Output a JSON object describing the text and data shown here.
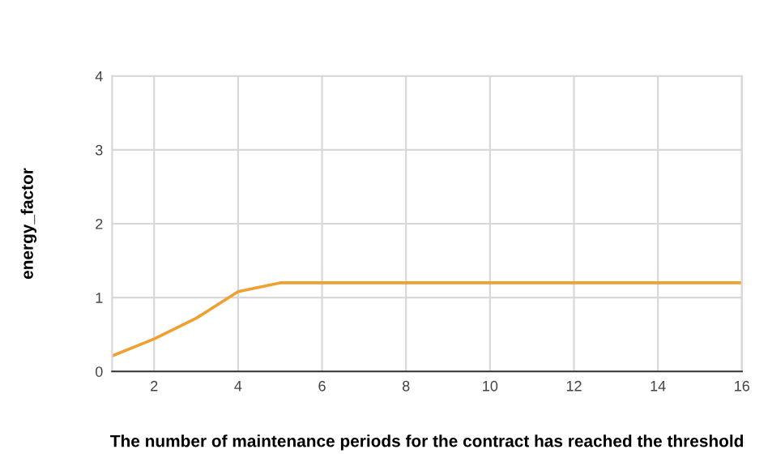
{
  "chart_data": {
    "type": "line",
    "xlabel": "The number of maintenance periods for the contract has reached the threshold",
    "ylabel": "energy_factor",
    "x": [
      1,
      2,
      3,
      4,
      5,
      6,
      7,
      8,
      9,
      10,
      11,
      12,
      13,
      14,
      15,
      16
    ],
    "series": [
      {
        "color": "#f0a030",
        "values": [
          0.21,
          0.44,
          0.72,
          1.08,
          1.2,
          1.2,
          1.2,
          1.2,
          1.2,
          1.2,
          1.2,
          1.2,
          1.2,
          1.2,
          1.2,
          1.2
        ]
      }
    ],
    "xlim": [
      1,
      16
    ],
    "xticks": [
      2,
      4,
      6,
      8,
      10,
      12,
      14,
      16
    ],
    "ylim": [
      0,
      4
    ],
    "yticks": [
      0,
      1,
      2,
      3,
      4
    ],
    "grid": true
  }
}
